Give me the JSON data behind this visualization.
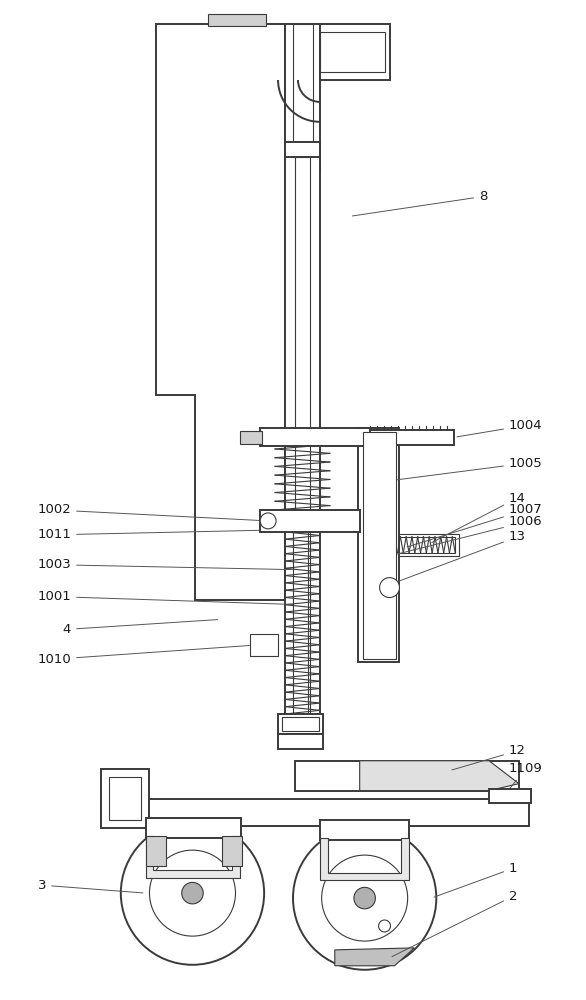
{
  "bg_color": "#ffffff",
  "lc": "#3a3a3a",
  "lw": 1.4,
  "tlw": 0.8,
  "figsize": [
    5.86,
    10.0
  ],
  "dpi": 100
}
